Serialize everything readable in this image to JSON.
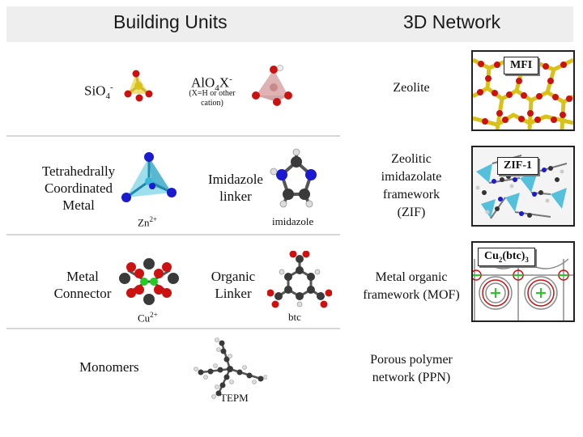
{
  "header": {
    "left_title": "Building Units",
    "right_title": "3D Network"
  },
  "rows": {
    "zeolite": {
      "unit1": "SiO",
      "unit1_sub": "4",
      "unit1_sup": "-",
      "unit2": "AlO",
      "unit2_sub": "4",
      "unit2_mid": "X",
      "unit2_sup": "-",
      "unit2_note_line1": "(X=H or other",
      "unit2_note_line2": "cation)",
      "network": "Zeolite",
      "image_label": "MFI"
    },
    "zif": {
      "unit1_line1": "Tetrahedrally",
      "unit1_line2": "Coordinated",
      "unit1_line3": "Metal",
      "unit1_caption": "Zn",
      "unit1_caption_sup": "2+",
      "unit2_line1": "Imidazole",
      "unit2_line2": "linker",
      "unit2_caption": "imidazole",
      "network_line1": "Zeolitic",
      "network_line2": "imidazolate",
      "network_line3": "framework",
      "network_line4": "(ZIF)",
      "image_label": "ZIF-1"
    },
    "mof": {
      "unit1_line1": "Metal",
      "unit1_line2": "Connector",
      "unit1_caption": "Cu",
      "unit1_caption_sup": "2+",
      "unit2_line1": "Organic",
      "unit2_line2": "Linker",
      "unit2_caption": "btc",
      "network_line1": "Metal organic",
      "network_line2": "framework (MOF)",
      "image_label_main": "Cu",
      "image_label_sub1": "2",
      "image_label_mid": "(btc)",
      "image_label_sub2": "3"
    },
    "ppn": {
      "unit1": "Monomers",
      "unit2_caption": "TEPM",
      "network_line1": "Porous polymer",
      "network_line2": "network (PPN)"
    }
  },
  "colors": {
    "oxygen": "#cc1111",
    "silicon": "#d8c21a",
    "aluminum": "#c98a8a",
    "nitrogen": "#1a1ad0",
    "zinc": "#3ab8d8",
    "carbon": "#3a3a3a",
    "hydrogen": "#dddddd",
    "copper": "#22cc22"
  }
}
